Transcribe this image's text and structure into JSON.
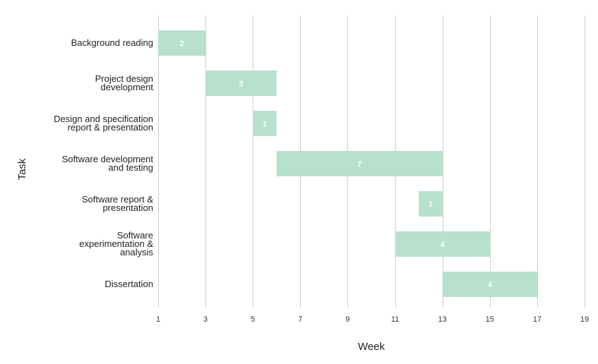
{
  "chart_data": {
    "type": "bar",
    "orientation": "horizontal-gantt",
    "xlabel": "Week",
    "ylabel": "Task",
    "xlim": [
      1,
      19
    ],
    "xticks": [
      1,
      3,
      5,
      7,
      9,
      11,
      13,
      15,
      17,
      19
    ],
    "grid": true,
    "bar_color": "#b7e1cd",
    "tasks": [
      {
        "label": [
          "Background reading"
        ],
        "start": 1,
        "end": 3,
        "value": "2"
      },
      {
        "label": [
          "Project design",
          "development"
        ],
        "start": 3,
        "end": 6,
        "value": "3"
      },
      {
        "label": [
          "Design and specification",
          "report & presentation"
        ],
        "start": 5,
        "end": 6,
        "value": "1"
      },
      {
        "label": [
          "Software development",
          "and testing"
        ],
        "start": 6,
        "end": 13,
        "value": "7"
      },
      {
        "label": [
          "Software report &",
          "presentation"
        ],
        "start": 12,
        "end": 13,
        "value": "1"
      },
      {
        "label": [
          "Software",
          "experimentation &",
          "analysis"
        ],
        "start": 11,
        "end": 15,
        "value": "4"
      },
      {
        "label": [
          "Dissertation"
        ],
        "start": 13,
        "end": 17,
        "value": "4"
      }
    ]
  }
}
